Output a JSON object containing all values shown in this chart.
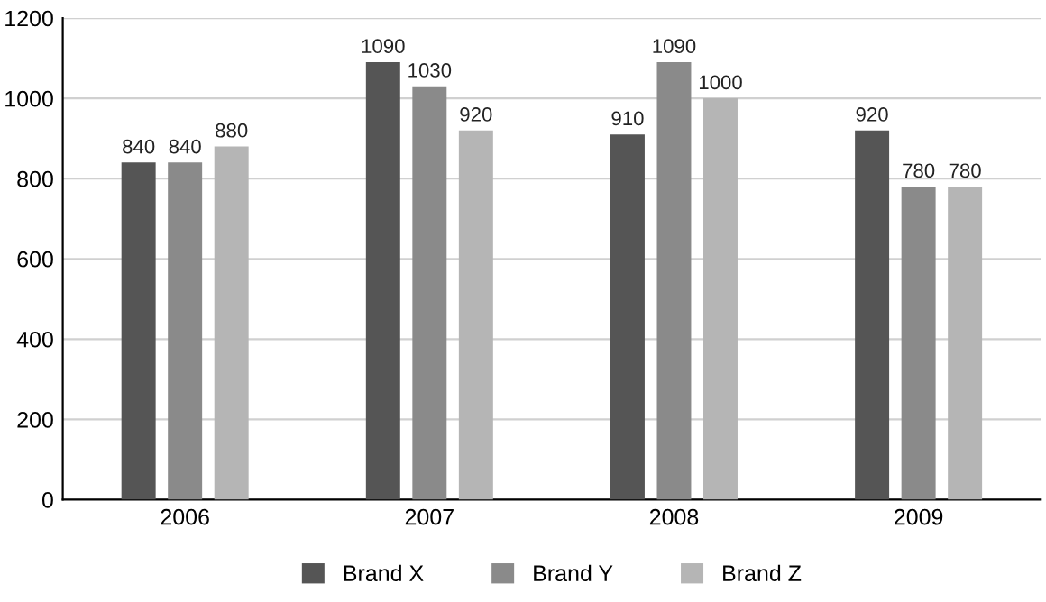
{
  "chart_data": {
    "type": "bar",
    "categories": [
      "2006",
      "2007",
      "2008",
      "2009"
    ],
    "series": [
      {
        "name": "Brand X",
        "color": "#555555",
        "values": [
          840,
          1090,
          910,
          920
        ]
      },
      {
        "name": "Brand Y",
        "color": "#8a8a8a",
        "values": [
          840,
          1030,
          1090,
          780
        ]
      },
      {
        "name": "Brand Z",
        "color": "#b5b5b5",
        "values": [
          880,
          920,
          1000,
          780
        ]
      }
    ],
    "ylim": [
      0,
      1200
    ],
    "yticks": [
      0,
      200,
      400,
      600,
      800,
      1000,
      1200
    ],
    "grid": "y",
    "legend": "bottom",
    "data_labels": true
  }
}
